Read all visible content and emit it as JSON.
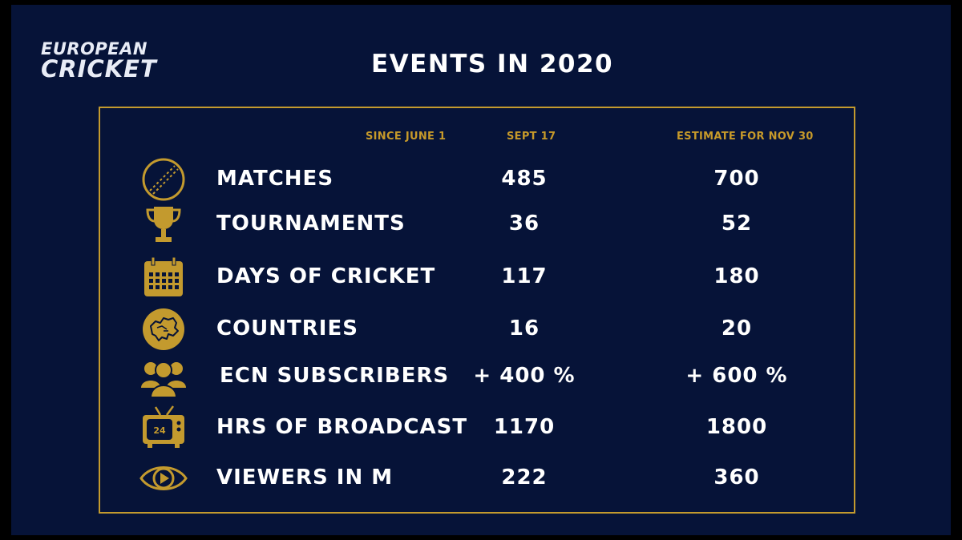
{
  "logo": {
    "line1": "EUROPEAN",
    "line2": "CRICKET"
  },
  "title": "EVENTS IN 2020",
  "columns": {
    "since": "SINCE JUNE 1",
    "sept": "SEPT 17",
    "estimate": "ESTIMATE  FOR NOV 30"
  },
  "colors": {
    "background": "#061338",
    "accent": "#c39a2e",
    "text": "#ffffff"
  },
  "rows": [
    {
      "icon": "cricket-ball-icon",
      "label": "MATCHES",
      "sept": "485",
      "estimate": "700"
    },
    {
      "icon": "trophy-icon",
      "label": "TOURNAMENTS",
      "sept": "36",
      "estimate": "52"
    },
    {
      "icon": "calendar-icon",
      "label": "DAYS OF CRICKET",
      "sept": "117",
      "estimate": "180"
    },
    {
      "icon": "europe-map-icon",
      "label": "COUNTRIES",
      "sept": "16",
      "estimate": "20"
    },
    {
      "icon": "people-icon",
      "label": "ECN SUBSCRIBERS",
      "sept": "+ 400 %",
      "estimate": "+ 600 %"
    },
    {
      "icon": "tv-24-icon",
      "label": "HRS OF BROADCAST",
      "sept": "1170",
      "estimate": "1800"
    },
    {
      "icon": "eye-play-icon",
      "label": "VIEWERS IN M",
      "sept": "222",
      "estimate": "360"
    }
  ]
}
